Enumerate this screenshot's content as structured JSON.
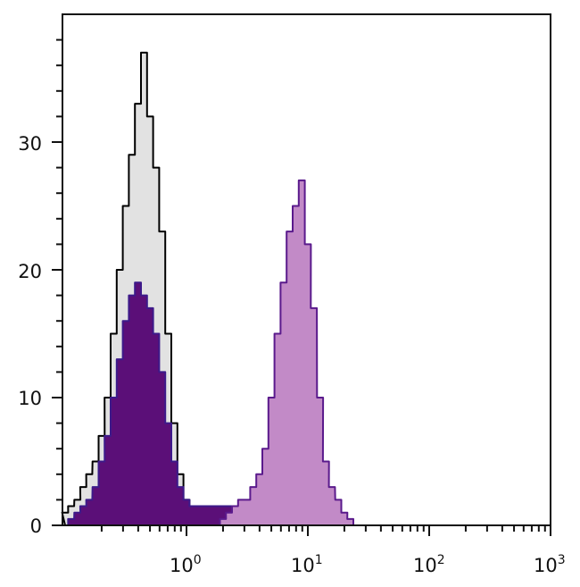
{
  "chart_data": {
    "type": "area",
    "title": "",
    "xlabel": "",
    "ylabel": "",
    "x_scale": "log",
    "xlim": [
      0.1,
      1000
    ],
    "ylim": [
      0,
      40
    ],
    "grid": false,
    "legend": "none",
    "x_ticks": [
      {
        "value": 1,
        "base": "10",
        "exp": "0"
      },
      {
        "value": 10,
        "base": "10",
        "exp": "1"
      },
      {
        "value": 100,
        "base": "10",
        "exp": "2"
      },
      {
        "value": 1000,
        "base": "10",
        "exp": "3"
      }
    ],
    "y_ticks": [
      {
        "value": 0,
        "label": "0"
      },
      {
        "value": 10,
        "label": "10"
      },
      {
        "value": 20,
        "label": "20"
      },
      {
        "value": 30,
        "label": "30"
      }
    ],
    "x": [
      0.1,
      0.112,
      0.126,
      0.141,
      0.158,
      0.178,
      0.2,
      0.224,
      0.251,
      0.282,
      0.316,
      0.355,
      0.398,
      0.447,
      0.501,
      0.562,
      0.631,
      0.708,
      0.794,
      0.891,
      1,
      1.12,
      1.26,
      1.41,
      1.58,
      1.78,
      2,
      2.24,
      2.51,
      2.82,
      3.16,
      3.55,
      3.98,
      4.47,
      5.01,
      5.62,
      6.31,
      7.08,
      7.94,
      8.91,
      10,
      11.2,
      12.6,
      14.1,
      15.8,
      17.8,
      20,
      22.4,
      25.1,
      28.2,
      31.6
    ],
    "series": [
      {
        "fill": "#e2e2e2",
        "stroke": "#000000",
        "values": [
          1,
          1.5,
          2,
          3,
          4,
          5,
          7,
          10,
          15,
          20,
          25,
          29,
          33,
          37,
          32,
          28,
          23,
          15,
          8,
          4,
          2,
          1.5,
          1,
          1,
          0.8,
          0.6,
          0.5,
          0.3,
          0.2,
          0.1,
          0,
          0,
          0,
          0,
          0,
          0,
          0,
          0,
          0,
          0,
          0,
          0,
          0,
          0,
          0,
          0,
          0,
          0,
          0,
          0,
          0
        ]
      },
      {
        "fill": "#5b0f78",
        "stroke": "#3d1a8a",
        "values": [
          0,
          0.5,
          1,
          1.5,
          2,
          3,
          5,
          7,
          10,
          13,
          16,
          18,
          19,
          18,
          17,
          15,
          12,
          8,
          5,
          3,
          2,
          1.5,
          1.5,
          1.5,
          1.5,
          1.5,
          1.5,
          1.5,
          1.5,
          1.5,
          1.5,
          1,
          1,
          0.5,
          0,
          0,
          0,
          0,
          0,
          0,
          0,
          0,
          0,
          0,
          0,
          0,
          0,
          0,
          0,
          0,
          0
        ]
      },
      {
        "fill": "#c28ac7",
        "stroke": "#5a1a8c",
        "values": [
          0,
          0,
          0,
          0,
          0,
          0,
          0,
          0,
          0,
          0,
          0,
          0,
          0,
          0,
          0,
          0,
          0,
          0,
          0,
          0,
          0,
          0,
          0,
          0,
          0,
          0,
          0.5,
          1,
          1.5,
          2,
          2,
          3,
          4,
          6,
          10,
          15,
          19,
          23,
          25,
          27,
          22,
          17,
          10,
          5,
          3,
          2,
          1,
          0.5,
          0,
          0,
          0
        ]
      }
    ]
  }
}
